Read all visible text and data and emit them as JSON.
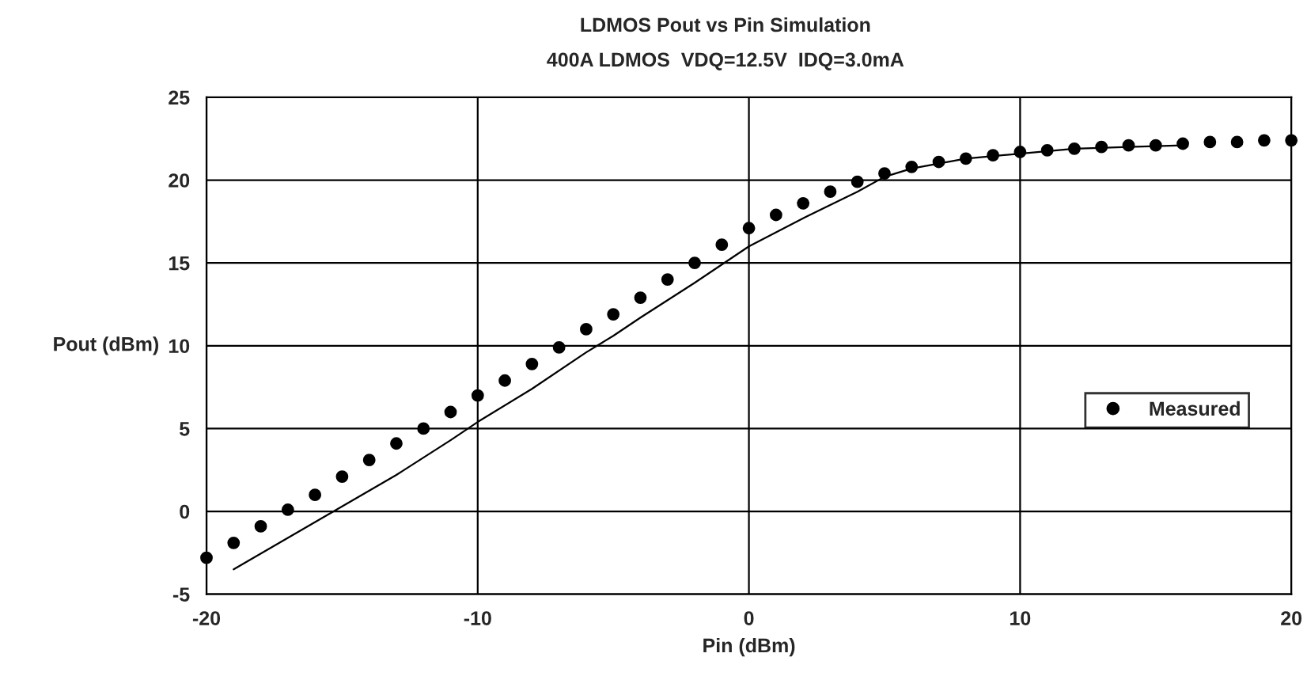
{
  "chart_data": {
    "type": "scatter",
    "title": "LDMOS Pout vs Pin Simulation",
    "subtitle": "400A LDMOS  VDQ=12.5V  IDQ=3.0mA",
    "xlabel": "Pin (dBm)",
    "ylabel": "Pout (dBm)",
    "xlim": [
      -20,
      20
    ],
    "xticks": [
      -20,
      -10,
      0,
      10,
      20
    ],
    "ylim": [
      -5,
      25
    ],
    "yticks": [
      -5,
      0,
      5,
      10,
      15,
      20,
      25
    ],
    "grid": true,
    "legend": "right",
    "series": [
      {
        "type": "line",
        "color": "#000000",
        "line_style": "solid",
        "marker": "none",
        "x": [
          -19,
          -17,
          -15,
          -13,
          -11,
          -10,
          -8,
          -6,
          -5,
          -4,
          -2,
          0,
          2,
          4,
          5,
          6,
          8,
          10,
          12,
          14,
          16
        ],
        "values": [
          -3.5,
          -1.6,
          0.3,
          2.2,
          4.3,
          5.4,
          7.4,
          9.6,
          10.6,
          11.7,
          13.8,
          16.0,
          17.7,
          19.3,
          20.2,
          20.7,
          21.3,
          21.6,
          21.9,
          22.0,
          22.1
        ]
      },
      {
        "name": "Measured",
        "color": "#000000",
        "marker": "circle",
        "x": [
          -20,
          -19,
          -18,
          -17,
          -16,
          -15,
          -14,
          -13,
          -12,
          -11,
          -10,
          -9,
          -8,
          -7,
          -6,
          -5,
          -4,
          -3,
          -2,
          -1,
          0,
          1,
          2,
          3,
          4,
          5,
          6,
          7,
          8,
          9,
          10,
          11,
          12,
          13,
          14,
          15,
          16,
          17,
          18,
          19,
          20
        ],
        "values": [
          -2.8,
          -1.9,
          -0.9,
          0.1,
          1.0,
          2.1,
          3.1,
          4.1,
          5.0,
          6.0,
          7.0,
          7.9,
          8.9,
          9.9,
          11.0,
          11.9,
          12.9,
          14.0,
          15.0,
          16.1,
          17.1,
          17.9,
          18.6,
          19.3,
          19.9,
          20.4,
          20.8,
          21.1,
          21.3,
          21.5,
          21.7,
          21.8,
          21.9,
          22.0,
          22.1,
          22.1,
          22.2,
          22.3,
          22.3,
          22.4,
          22.4
        ]
      }
    ]
  }
}
